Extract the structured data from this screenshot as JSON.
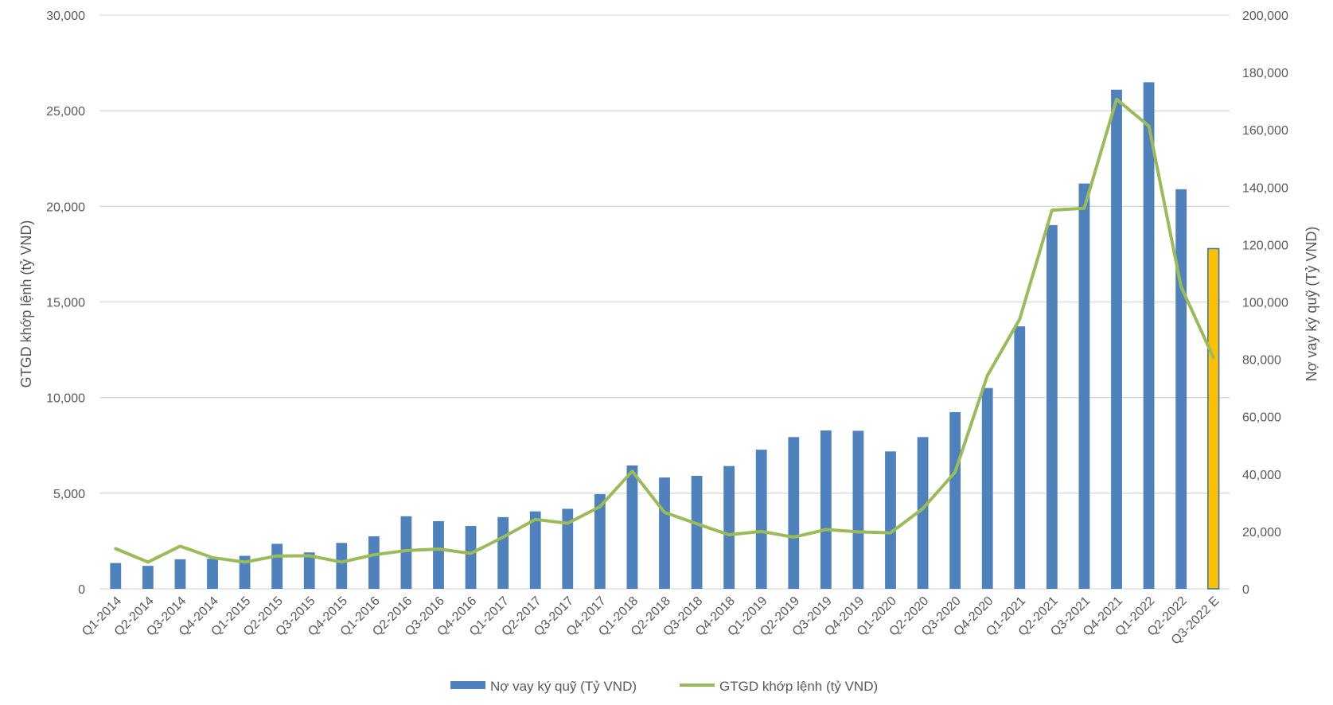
{
  "chart_data": {
    "type": "bar",
    "categories": [
      "Q1-2014",
      "Q2-2014",
      "Q3-2014",
      "Q4-2014",
      "Q1-2015",
      "Q2-2015",
      "Q3-2015",
      "Q4-2015",
      "Q1-2016",
      "Q2-2016",
      "Q3-2016",
      "Q4-2016",
      "Q1-2017",
      "Q2-2017",
      "Q3-2017",
      "Q4-2017",
      "Q1-2018",
      "Q2-2018",
      "Q3-2018",
      "Q4-2018",
      "Q1-2019",
      "Q2-2019",
      "Q3-2019",
      "Q4-2019",
      "Q1-2020",
      "Q2-2020",
      "Q3-2020",
      "Q4-2020",
      "Q1-2021",
      "Q2-2021",
      "Q3-2021",
      "Q4-2021",
      "Q1-2022",
      "Q2-2022",
      "Q3-2022 E"
    ],
    "series": [
      {
        "name": "Nợ vay ký quỹ (Tỷ VND)",
        "type": "bar",
        "axis": "right",
        "color": "#4f81bd",
        "highlight_color": "#ffc000",
        "highlight_index": 34,
        "values": [
          9000,
          8000,
          10300,
          10500,
          11500,
          15700,
          12700,
          16000,
          18300,
          25300,
          23600,
          21900,
          25000,
          27000,
          27900,
          33000,
          43000,
          38800,
          39400,
          42800,
          48500,
          52900,
          55200,
          55100,
          47900,
          52900,
          61600,
          70000,
          91500,
          126800,
          141300,
          174000,
          176600,
          139300,
          118600
        ]
      },
      {
        "name": "GTGD khớp lệnh (tỷ VND)",
        "type": "line",
        "axis": "left",
        "color": "#9bbb59",
        "values": [
          2100,
          1400,
          2230,
          1630,
          1400,
          1720,
          1730,
          1400,
          1780,
          2000,
          2080,
          1850,
          2700,
          3630,
          3430,
          4300,
          6150,
          4000,
          3400,
          2830,
          3000,
          2700,
          3100,
          2980,
          2930,
          4200,
          6100,
          11150,
          14100,
          19800,
          19900,
          25600,
          24200,
          15800,
          12100
        ]
      }
    ],
    "y_left": {
      "label": "GTGD khớp lệnh (tỷ VND)",
      "min": 0,
      "max": 30000,
      "step": 5000,
      "tick_labels": [
        "0",
        "5,000",
        "10,000",
        "15,000",
        "20,000",
        "25,000",
        "30,000"
      ]
    },
    "y_right": {
      "label": "Nợ vay ký quỹ (Tỷ VND)",
      "min": 0,
      "max": 200000,
      "step": 20000,
      "tick_labels": [
        "0",
        "20,000",
        "40,000",
        "60,000",
        "80,000",
        "100,000",
        "120,000",
        "140,000",
        "160,000",
        "180,000",
        "200,000"
      ]
    },
    "grid": true,
    "legend": "bottom-center",
    "gridline_color": "#d9d9d9"
  }
}
